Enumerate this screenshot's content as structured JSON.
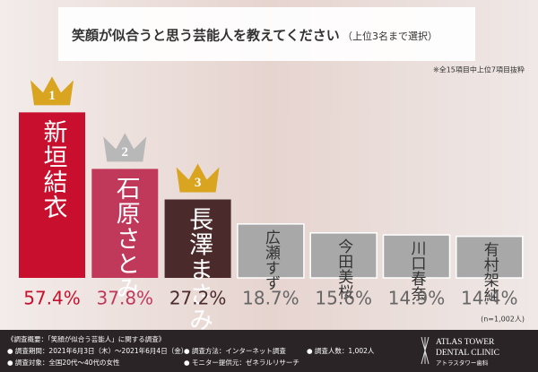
{
  "chart_data": {
    "type": "bar",
    "title": "笑顔が似合うと思う芸能人を教えてください",
    "subtitle": "（上位3名まで選択）",
    "note": "※全15項目中上位7項目抜粋",
    "sample_note": "(n=1,002人)",
    "categories": [
      "新垣結衣",
      "石原さとみ",
      "長澤まさみ",
      "広瀬すず",
      "今田美桜",
      "川口春奈",
      "有村架純"
    ],
    "values": [
      57.4,
      37.8,
      27.2,
      18.7,
      15.6,
      14.9,
      14.4
    ],
    "value_labels": [
      "57.4%",
      "37.8%",
      "27.2%",
      "18.7%",
      "15.6%",
      "14.9%",
      "14.4%"
    ],
    "colors": [
      "#c8102e",
      "#c0395a",
      "#4a2a2a",
      "#a8a8a8",
      "#a8a8a8",
      "#a8a8a8",
      "#a8a8a8"
    ],
    "label_colors": [
      "#c8102e",
      "#c0395a",
      "#4a2a2a",
      "#666666",
      "#666666",
      "#666666",
      "#666666"
    ],
    "crowns": [
      "1",
      "2",
      "3"
    ],
    "ylim": [
      0,
      60
    ],
    "footer": {
      "heading": "《調査概要：「笑顔が似合う芸能人」に関する調査》",
      "items": [
        "● 調査期間：2021年6月3日（木）〜2021年6月4日（金）",
        "● 調査方法：インターネット調査",
        "● 調査人数：1,002人",
        "● 調査対象：全国20代〜40代の女性",
        "● モニター提供元：ゼネラルリサーチ"
      ],
      "logo": "ATLAS TOWER",
      "logo2": "DENTAL CLINIC",
      "logo_sub": "アトラスタワー歯科"
    }
  }
}
